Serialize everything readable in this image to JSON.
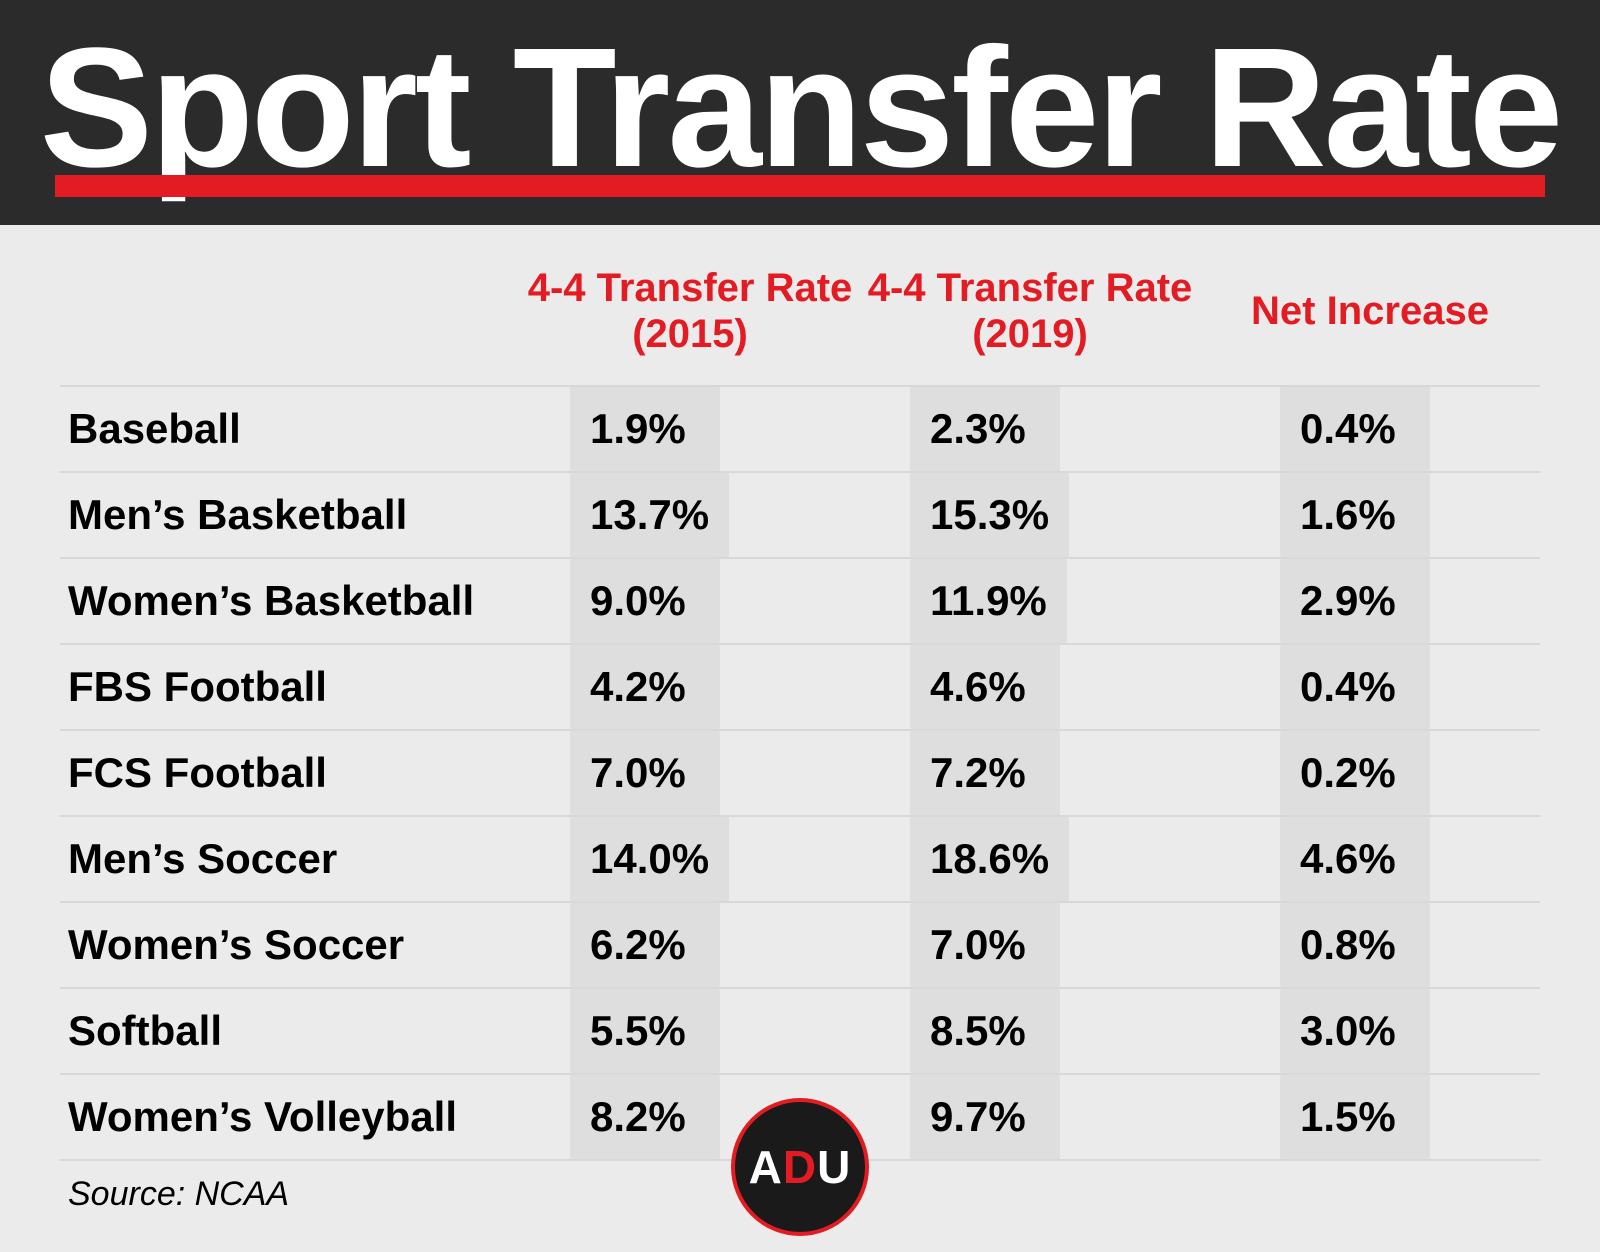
{
  "title": "Sport Transfer Rate",
  "accent_color": "#e31b23",
  "header_bg": "#2b2b2b",
  "body_bg": "#ebebeb",
  "pill_bg": "#dedede",
  "divider_color": "#d8d8d8",
  "table": {
    "columns": [
      "",
      "4-4 Transfer Rate (2015)",
      "4-4 Transfer Rate (2019)",
      "Net Increase"
    ],
    "rows": [
      {
        "sport": "Baseball",
        "rate2015": "1.9%",
        "rate2019": "2.3%",
        "net": "0.4%"
      },
      {
        "sport": "Men’s Basketball",
        "rate2015": "13.7%",
        "rate2019": "15.3%",
        "net": "1.6%"
      },
      {
        "sport": "Women’s Basketball",
        "rate2015": "9.0%",
        "rate2019": "11.9%",
        "net": "2.9%"
      },
      {
        "sport": "FBS Football",
        "rate2015": "4.2%",
        "rate2019": "4.6%",
        "net": "0.4%"
      },
      {
        "sport": "FCS Football",
        "rate2015": "7.0%",
        "rate2019": "7.2%",
        "net": "0.2%"
      },
      {
        "sport": "Men’s Soccer",
        "rate2015": "14.0%",
        "rate2019": "18.6%",
        "net": "4.6%"
      },
      {
        "sport": "Women’s Soccer",
        "rate2015": "6.2%",
        "rate2019": "7.0%",
        "net": "0.8%"
      },
      {
        "sport": "Softball",
        "rate2015": "5.5%",
        "rate2019": "8.5%",
        "net": "3.0%"
      },
      {
        "sport": "Women’s Volleyball",
        "rate2015": "8.2%",
        "rate2019": "9.7%",
        "net": "1.5%"
      }
    ]
  },
  "source": "Source: NCAA",
  "logo": {
    "letters": [
      "A",
      "D",
      "U"
    ],
    "highlight_index": 1
  }
}
